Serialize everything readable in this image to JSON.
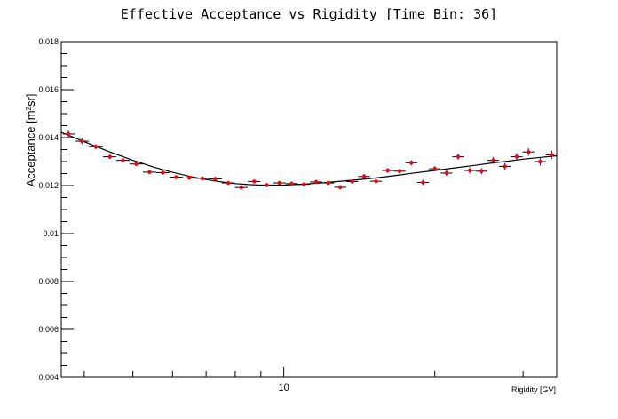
{
  "chart_data": {
    "type": "scatter",
    "title": "Effective Acceptance vs Rigidity [Time Bin: 36]",
    "xlabel": "Rigidity [GV]",
    "ylabel_main": "Acceptance [m",
    "ylabel_sup": "2",
    "ylabel_end": "sr]",
    "xscale": "log",
    "xlim": [
      3.6,
      35
    ],
    "ylim": [
      0.004,
      0.018
    ],
    "x_tick_labels": [
      {
        "value": 10,
        "label": "10"
      }
    ],
    "y_tick_labels": [
      {
        "value": 0.004,
        "label": "0.004"
      },
      {
        "value": 0.006,
        "label": "0.006"
      },
      {
        "value": 0.008,
        "label": "0.008"
      },
      {
        "value": 0.01,
        "label": "0.01"
      },
      {
        "value": 0.012,
        "label": "0.012"
      },
      {
        "value": 0.014,
        "label": "0.014"
      },
      {
        "value": 0.016,
        "label": "0.016"
      },
      {
        "value": 0.018,
        "label": "0.018"
      }
    ],
    "grid": false,
    "series": [
      {
        "kind": "points",
        "marker_color": "#ff0000",
        "error_color": "#0000ff",
        "x": [
          3.72,
          3.96,
          4.22,
          4.5,
          4.78,
          5.08,
          5.4,
          5.74,
          6.1,
          6.48,
          6.88,
          7.3,
          7.75,
          8.23,
          8.73,
          9.25,
          9.8,
          10.37,
          10.97,
          11.6,
          12.26,
          12.96,
          13.69,
          14.46,
          15.27,
          16.12,
          17.02,
          17.96,
          18.95,
          20.0,
          21.1,
          22.27,
          23.49,
          24.79,
          26.16,
          27.6,
          29.13,
          30.74,
          32.44,
          34.2
        ],
        "y": [
          0.01415,
          0.01385,
          0.01362,
          0.0132,
          0.01305,
          0.0129,
          0.01256,
          0.01254,
          0.01235,
          0.01232,
          0.0123,
          0.01228,
          0.01211,
          0.01192,
          0.01217,
          0.01202,
          0.01211,
          0.01208,
          0.01205,
          0.01215,
          0.01211,
          0.01193,
          0.01217,
          0.01238,
          0.01218,
          0.01263,
          0.0126,
          0.01295,
          0.01213,
          0.0127,
          0.01252,
          0.0132,
          0.01263,
          0.0126,
          0.01305,
          0.0128,
          0.0132,
          0.0134,
          0.013,
          0.01328
        ],
        "y_err": [
          0.00015,
          0.00012,
          0.0001,
          9e-05,
          9e-05,
          8e-05,
          8e-05,
          8e-05,
          8e-05,
          8e-05,
          8e-05,
          8e-05,
          8e-05,
          8e-05,
          8e-05,
          8e-05,
          8e-05,
          8e-05,
          8e-05,
          9e-05,
          9e-05,
          9e-05,
          9e-05,
          0.0001,
          0.0001,
          0.0001,
          0.0001,
          0.00011,
          0.00011,
          0.00011,
          0.00012,
          0.00012,
          0.00013,
          0.00013,
          0.00014,
          0.00014,
          0.00015,
          0.00016,
          0.00017,
          0.00018
        ]
      },
      {
        "kind": "fit",
        "line_color": "#000000",
        "x": [
          3.6,
          4.0,
          4.5,
          5.0,
          5.5,
          6.0,
          6.5,
          7.0,
          7.5,
          8.0,
          8.5,
          9.0,
          10.0,
          11.0,
          12.0,
          13.0,
          14.0,
          15.0,
          16.0,
          17.0,
          18.0,
          20.0,
          22.0,
          24.0,
          26.0,
          28.0,
          30.0,
          32.0,
          35.0
        ],
        "y": [
          0.01422,
          0.01383,
          0.0134,
          0.01305,
          0.01277,
          0.01255,
          0.01238,
          0.01225,
          0.01215,
          0.01208,
          0.01204,
          0.01202,
          0.01202,
          0.01206,
          0.01212,
          0.01218,
          0.01224,
          0.0123,
          0.01237,
          0.01244,
          0.01251,
          0.01263,
          0.01274,
          0.01284,
          0.01294,
          0.01302,
          0.0131,
          0.01316,
          0.01324
        ]
      }
    ]
  }
}
